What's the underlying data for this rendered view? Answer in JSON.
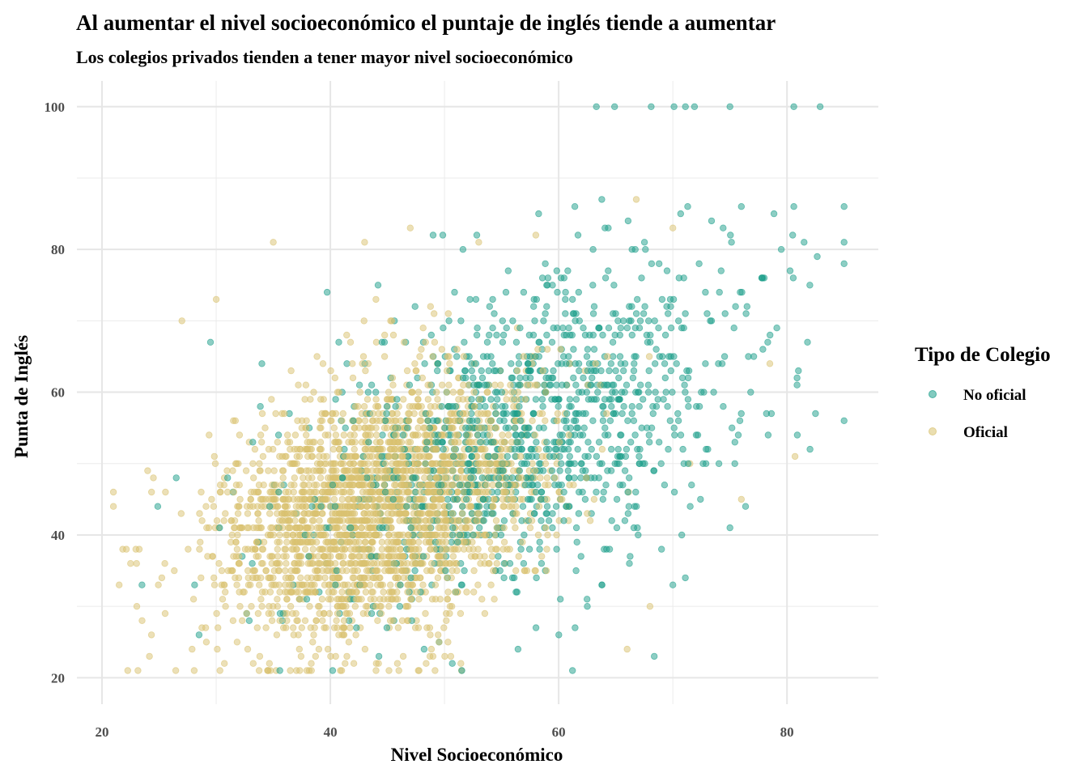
{
  "chart_data": {
    "type": "scatter",
    "title": "Al aumentar el nivel socioeconómico el puntaje de inglés tiende a aumentar",
    "subtitle": "Los colegios privados tienden a tener mayor nivel socioeconómico",
    "xlabel": "Nivel Socioeconómico",
    "ylabel": "Punta de Inglés",
    "xlim": [
      17.8,
      88
    ],
    "ylim": [
      16.3,
      103.6
    ],
    "xticks": [
      20,
      40,
      60,
      80
    ],
    "yticks": [
      20,
      40,
      60,
      80,
      100
    ],
    "xtick_labels": [
      "20",
      "40",
      "60",
      "80"
    ],
    "ytick_labels": [
      "20",
      "40",
      "60",
      "80",
      "100"
    ],
    "grid": true,
    "legend": {
      "title": "Tipo de Colegio",
      "placement": "right",
      "entries": [
        "No oficial",
        "Oficial"
      ]
    },
    "series": [
      {
        "name": "Oficial",
        "color": "#d9c270",
        "cloud": {
          "n": 2600,
          "x_mean": 44.5,
          "x_sd": 7,
          "y_mean": 44,
          "y_sd": 9,
          "corr": 0.35,
          "seed": 7
        },
        "points": [
          [
            21,
            46
          ],
          [
            21,
            44
          ],
          [
            21.5,
            33
          ],
          [
            22.5,
            36
          ],
          [
            27,
            70
          ],
          [
            66.8,
            87
          ],
          [
            80.7,
            51
          ],
          [
            76,
            45
          ],
          [
            43,
            81
          ],
          [
            47,
            83
          ],
          [
            24,
            49
          ],
          [
            24.5,
            48
          ],
          [
            25.5,
            36
          ],
          [
            30,
            73
          ],
          [
            35,
            81
          ],
          [
            53,
            81
          ],
          [
            58,
            82
          ],
          [
            70,
            83
          ],
          [
            78.5,
            64
          ],
          [
            71.5,
            50
          ],
          [
            68,
            30
          ],
          [
            66,
            24
          ],
          [
            46,
            21
          ],
          [
            44,
            21
          ]
        ]
      },
      {
        "name": "No oficial",
        "color": "#1b9e8a",
        "cloud": {
          "n": 1200,
          "x_mean": 57,
          "x_sd": 9,
          "y_mean": 54,
          "y_sd": 12,
          "corr": 0.45,
          "seed": 13
        },
        "points": [
          [
            63.3,
            100
          ],
          [
            64.9,
            100
          ],
          [
            68.1,
            100
          ],
          [
            70.1,
            100
          ],
          [
            71.1,
            100
          ],
          [
            71.9,
            100
          ],
          [
            75.0,
            100
          ],
          [
            80.6,
            100
          ],
          [
            82.9,
            100
          ],
          [
            85,
            86
          ],
          [
            85,
            81
          ],
          [
            85,
            56
          ],
          [
            80.6,
            86
          ],
          [
            76,
            86
          ],
          [
            29.5,
            67
          ],
          [
            26.5,
            48
          ],
          [
            23.5,
            33
          ],
          [
            28.5,
            26
          ],
          [
            82.5,
            57
          ],
          [
            81,
            63
          ],
          [
            70,
            33
          ],
          [
            75,
            41
          ],
          [
            34,
            64
          ],
          [
            49,
            82
          ],
          [
            79.5,
            80
          ],
          [
            81.5,
            81
          ],
          [
            82,
            75
          ],
          [
            76.5,
            72
          ],
          [
            78,
            76
          ],
          [
            80.5,
            82
          ]
        ]
      }
    ]
  }
}
